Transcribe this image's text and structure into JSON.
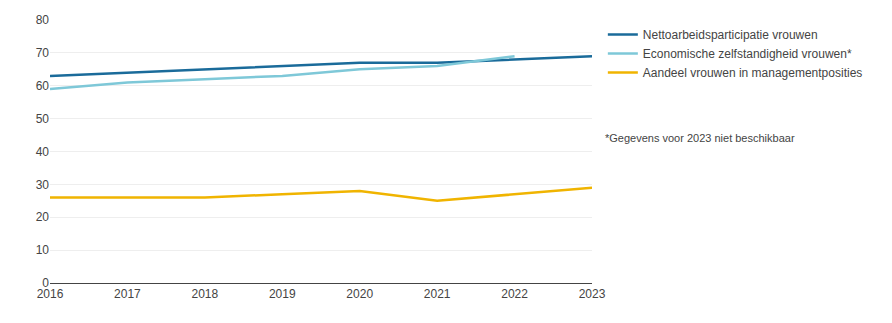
{
  "chart_data": {
    "type": "line",
    "x": [
      2016,
      2017,
      2018,
      2019,
      2020,
      2021,
      2022,
      2023
    ],
    "series": [
      {
        "name": "Nettoarbeidsparticipatie vrouwen",
        "color": "#1a6b9a",
        "values": [
          63,
          64,
          65,
          66,
          67,
          67,
          68,
          69
        ]
      },
      {
        "name": "Economische zelfstandigheid vrouwen*",
        "color": "#7ec8d8",
        "values": [
          59,
          61,
          62,
          63,
          65,
          66,
          69,
          null
        ]
      },
      {
        "name": "Aandeel vrouwen in managementposities",
        "color": "#f0b400",
        "values": [
          26,
          26,
          26,
          27,
          28,
          25,
          27,
          29
        ]
      }
    ],
    "xlim": [
      2016,
      2023
    ],
    "xticks": [
      2016,
      2017,
      2018,
      2019,
      2020,
      2021,
      2022,
      2023
    ],
    "ylim": [
      0,
      80
    ],
    "yticks": [
      0,
      10,
      20,
      30,
      40,
      50,
      60,
      70,
      80
    ],
    "grid": true,
    "annotations": [
      "*Gegevens voor 2023 niet beschikbaar"
    ]
  }
}
